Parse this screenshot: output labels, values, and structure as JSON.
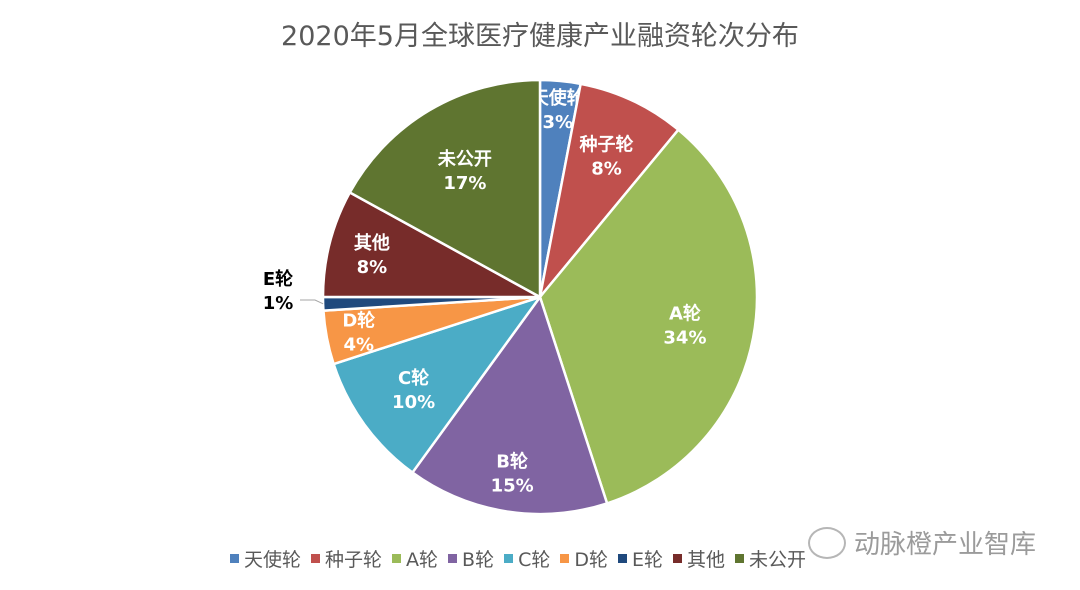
{
  "chart_data": {
    "type": "pie",
    "title": "2020年5月全球医疗健康产业融资轮次分布",
    "categories": [
      "天使轮",
      "种子轮",
      "A轮",
      "B轮",
      "C轮",
      "D轮",
      "E轮",
      "其他",
      "未公开"
    ],
    "values": [
      3,
      8,
      34,
      15,
      10,
      4,
      1,
      8,
      17
    ],
    "labels": [
      "3%",
      "8%",
      "34%",
      "15%",
      "10%",
      "4%",
      "1%",
      "8%",
      "17%"
    ],
    "colors": [
      "#4f81bd",
      "#c0504d",
      "#9bbb59",
      "#8064a2",
      "#4bacc6",
      "#f79646",
      "#1f497d",
      "#772c2a",
      "#5f7530"
    ],
    "legend": "bottom"
  },
  "watermark": "动脉橙产业智库"
}
